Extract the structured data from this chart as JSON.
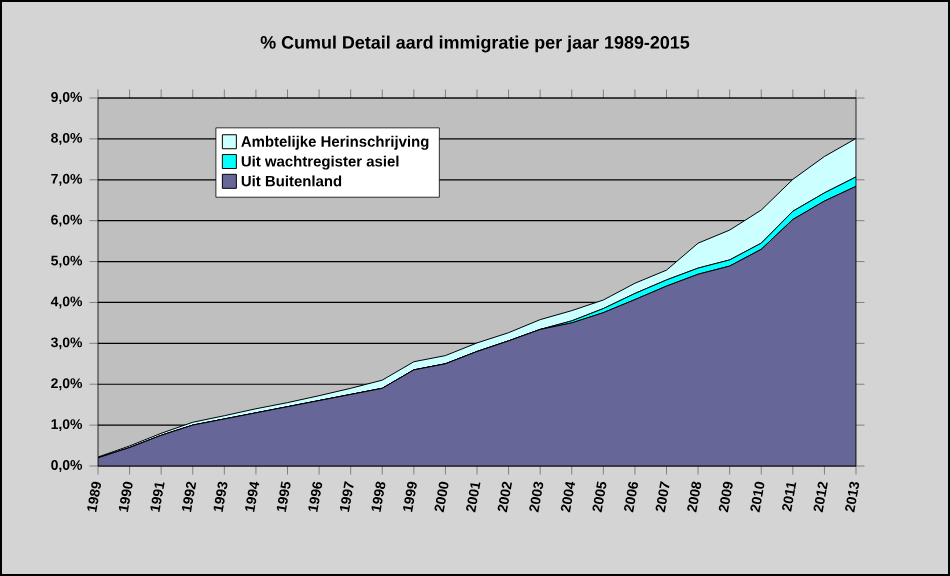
{
  "chart_data": {
    "type": "area",
    "title": "% Cumul Detail aard immigratie per jaar 1989-2015",
    "categories": [
      "1989",
      "1990",
      "1991",
      "1992",
      "1993",
      "1994",
      "1995",
      "1996",
      "1997",
      "1998",
      "1999",
      "2000",
      "2001",
      "2002",
      "2003",
      "2004",
      "2005",
      "2006",
      "2007",
      "2008",
      "2009",
      "2010",
      "2011",
      "2012",
      "2013"
    ],
    "stacked": true,
    "series": [
      {
        "name": "Uit Buitenland",
        "color": "#666699",
        "values": [
          0.2,
          0.45,
          0.75,
          1.0,
          1.15,
          1.3,
          1.45,
          1.6,
          1.75,
          1.9,
          2.35,
          2.5,
          2.8,
          3.06,
          3.34,
          3.5,
          3.75,
          4.07,
          4.4,
          4.69,
          4.89,
          5.3,
          6.03,
          6.48,
          6.84
        ]
      },
      {
        "name": "Uit wachtregister asiel",
        "color": "#00ffff",
        "values": [
          0,
          0,
          0,
          0,
          0,
          0,
          0,
          0,
          0,
          0,
          0,
          0,
          0,
          0,
          0,
          0.05,
          0.1,
          0.15,
          0.15,
          0.15,
          0.15,
          0.15,
          0.2,
          0.2,
          0.23
        ]
      },
      {
        "name": "Ambtelijke Herinschrijving",
        "color": "#ccffff",
        "values": [
          0.02,
          0.04,
          0.05,
          0.07,
          0.08,
          0.1,
          0.1,
          0.12,
          0.15,
          0.2,
          0.2,
          0.2,
          0.21,
          0.2,
          0.24,
          0.25,
          0.21,
          0.25,
          0.24,
          0.61,
          0.73,
          0.81,
          0.78,
          0.89,
          0.94
        ]
      }
    ],
    "ylim": [
      0,
      9
    ],
    "yticks": [
      {
        "value": 0,
        "label": "0,0%"
      },
      {
        "value": 1,
        "label": "1,0%"
      },
      {
        "value": 2,
        "label": "2,0%"
      },
      {
        "value": 3,
        "label": "3,0%"
      },
      {
        "value": 4,
        "label": "4,0%"
      },
      {
        "value": 5,
        "label": "5,0%"
      },
      {
        "value": 6,
        "label": "6,0%"
      },
      {
        "value": 7,
        "label": "7,0%"
      },
      {
        "value": 8,
        "label": "8,0%"
      },
      {
        "value": 9,
        "label": "9,0%"
      }
    ],
    "grid": "y",
    "legend": "top left"
  }
}
